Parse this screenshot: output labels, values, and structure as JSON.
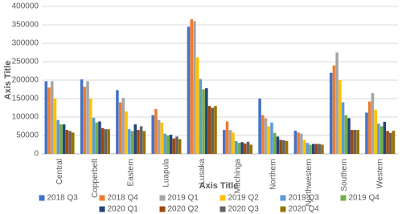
{
  "chart_data": {
    "type": "bar",
    "x_label": "Axis Title",
    "y_label": "Axis Title",
    "categories": [
      "Central",
      "Copperbelt",
      "Eastern",
      "Luapula",
      "Lusaka",
      "Muchinga",
      "Northern",
      "Northwestern",
      "Southern",
      "Western"
    ],
    "series": [
      {
        "name": "2018 Q3",
        "color": "#4472c4",
        "values": [
          197000,
          202000,
          173000,
          105000,
          345000,
          65000,
          150000,
          63000,
          220000,
          112000
        ]
      },
      {
        "name": "2018 Q4",
        "color": "#ed7d31",
        "values": [
          180000,
          182000,
          140000,
          122000,
          365000,
          88000,
          105000,
          58000,
          240000,
          142000
        ]
      },
      {
        "name": "2019 Q1",
        "color": "#a5a5a5",
        "values": [
          197000,
          197000,
          152000,
          92000,
          360000,
          65000,
          97000,
          55000,
          275000,
          165000
        ]
      },
      {
        "name": "2019 Q2",
        "color": "#ffc000",
        "values": [
          150000,
          150000,
          115000,
          85000,
          262000,
          58000,
          75000,
          38000,
          200000,
          120000
        ]
      },
      {
        "name": "2019 Q3",
        "color": "#5b9bd5",
        "values": [
          92000,
          98000,
          67000,
          55000,
          203000,
          35000,
          85000,
          30000,
          140000,
          82000
        ]
      },
      {
        "name": "2019 Q4",
        "color": "#70ad47",
        "values": [
          80000,
          85000,
          62000,
          50000,
          175000,
          30000,
          57000,
          25000,
          105000,
          75000
        ]
      },
      {
        "name": "2020 Q1",
        "color": "#264478",
        "values": [
          80000,
          88000,
          80000,
          52000,
          178000,
          32000,
          47000,
          27000,
          97000,
          87000
        ]
      },
      {
        "name": "2020 Q2",
        "color": "#9e480e",
        "values": [
          65000,
          70000,
          65000,
          42000,
          130000,
          28000,
          38000,
          27000,
          65000,
          62000
        ]
      },
      {
        "name": "2020 Q3",
        "color": "#636363",
        "values": [
          62000,
          67000,
          75000,
          47000,
          125000,
          33000,
          37000,
          27000,
          65000,
          57000
        ]
      },
      {
        "name": "2020 Q4",
        "color": "#997300",
        "values": [
          58000,
          67000,
          62000,
          40000,
          130000,
          25000,
          35000,
          25000,
          65000,
          63000
        ]
      }
    ],
    "ylim": [
      0,
      400000
    ],
    "yticks": [
      0,
      50000,
      100000,
      150000,
      200000,
      250000,
      300000,
      350000,
      400000
    ],
    "grid": true,
    "legend": "bottom"
  }
}
